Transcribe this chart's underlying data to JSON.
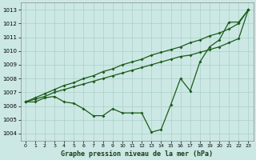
{
  "title": "Graphe pression niveau de la mer (hPa)",
  "xlim": [
    -0.5,
    23.5
  ],
  "ylim": [
    1003.5,
    1013.5
  ],
  "yticks": [
    1004,
    1005,
    1006,
    1007,
    1008,
    1009,
    1010,
    1011,
    1012,
    1013
  ],
  "xticks": [
    0,
    1,
    2,
    3,
    4,
    5,
    6,
    7,
    8,
    9,
    10,
    11,
    12,
    13,
    14,
    15,
    16,
    17,
    18,
    19,
    20,
    21,
    22,
    23
  ],
  "bg_color": "#cce8e4",
  "grid_color": "#aacfca",
  "line_color": "#1a5c1a",
  "line1_y": [
    1006.3,
    1006.3,
    1006.6,
    1006.7,
    1006.3,
    1006.2,
    1005.8,
    1005.3,
    1005.3,
    1005.8,
    1005.5,
    1005.5,
    1005.5,
    1004.1,
    1004.3,
    1006.1,
    1008.0,
    1007.1,
    1009.2,
    1010.3,
    1010.8,
    1012.1,
    1012.1,
    1013.0
  ],
  "line2_y": [
    1006.3,
    1006.5,
    1006.7,
    1007.0,
    1007.2,
    1007.4,
    1007.6,
    1007.8,
    1008.0,
    1008.2,
    1008.4,
    1008.6,
    1008.8,
    1009.0,
    1009.2,
    1009.4,
    1009.6,
    1009.7,
    1009.9,
    1010.1,
    1010.3,
    1010.6,
    1010.9,
    1013.0
  ],
  "line3_y": [
    1006.3,
    1006.6,
    1006.9,
    1007.2,
    1007.5,
    1007.7,
    1008.0,
    1008.2,
    1008.5,
    1008.7,
    1009.0,
    1009.2,
    1009.4,
    1009.7,
    1009.9,
    1010.1,
    1010.3,
    1010.6,
    1010.8,
    1011.1,
    1011.3,
    1011.6,
    1012.0,
    1013.0
  ],
  "tick_fontsize": 5,
  "xlabel_fontsize": 6,
  "figsize": [
    3.2,
    2.0
  ],
  "dpi": 100
}
